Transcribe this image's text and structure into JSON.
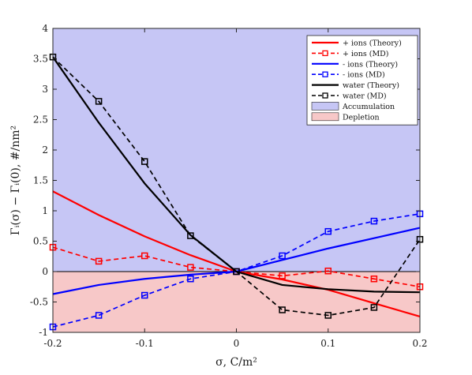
{
  "chart_data": {
    "type": "line",
    "xlabel": "σ, C/m²",
    "ylabel": "Γᵢ(σ) − Γᵢ(0), #/nm²",
    "xlim": [
      -0.2,
      0.2
    ],
    "ylim": [
      -1,
      4
    ],
    "x_ticks": [
      "-0.2",
      "-0.1",
      "0",
      "0.1",
      "0.2"
    ],
    "x_tick_values": [
      -0.2,
      -0.1,
      0,
      0.1,
      0.2
    ],
    "y_ticks": [
      "-1",
      "-0.5",
      "0",
      "0.5",
      "1",
      "1.5",
      "2",
      "2.5",
      "3",
      "3.5",
      "4"
    ],
    "y_tick_values": [
      -1,
      -0.5,
      0,
      0.5,
      1,
      1.5,
      2,
      2.5,
      3,
      3.5,
      4
    ],
    "grid": false,
    "legend_position": "top-right",
    "regions": [
      {
        "name": "Accumulation",
        "y_range": [
          0,
          4
        ],
        "color": "#c6c6f5"
      },
      {
        "name": "Depletion",
        "y_range": [
          -1,
          0
        ],
        "color": "#f7c8c8"
      }
    ],
    "series": [
      {
        "name": "+ ions (Theory)",
        "color": "#ff0000",
        "style": "solid",
        "marker": "none",
        "x": [
          -0.2,
          -0.15,
          -0.1,
          -0.05,
          0,
          0.05,
          0.1,
          0.15,
          0.2
        ],
        "y": [
          1.32,
          0.93,
          0.58,
          0.27,
          0,
          -0.13,
          -0.3,
          -0.52,
          -0.74
        ]
      },
      {
        "name": "+ ions (MD)",
        "color": "#ff0000",
        "style": "dashed",
        "marker": "square",
        "x": [
          -0.2,
          -0.15,
          -0.1,
          -0.05,
          0,
          0.05,
          0.1,
          0.15,
          0.2
        ],
        "y": [
          0.4,
          0.17,
          0.26,
          0.07,
          0,
          -0.07,
          0.01,
          -0.12,
          -0.25
        ]
      },
      {
        "name": "- ions (Theory)",
        "color": "#0000ff",
        "style": "solid",
        "marker": "none",
        "x": [
          -0.2,
          -0.15,
          -0.1,
          -0.05,
          0,
          0.05,
          0.1,
          0.15,
          0.2
        ],
        "y": [
          -0.37,
          -0.22,
          -0.12,
          -0.05,
          0,
          0.19,
          0.38,
          0.55,
          0.72
        ]
      },
      {
        "name": "- ions (MD)",
        "color": "#0000ff",
        "style": "dashed",
        "marker": "square",
        "x": [
          -0.2,
          -0.15,
          -0.1,
          -0.05,
          0,
          0.05,
          0.1,
          0.15,
          0.2
        ],
        "y": [
          -0.91,
          -0.72,
          -0.39,
          -0.12,
          0,
          0.26,
          0.66,
          0.83,
          0.95
        ]
      },
      {
        "name": "water (Theory)",
        "color": "#000000",
        "style": "solid",
        "marker": "none",
        "x": [
          -0.2,
          -0.15,
          -0.1,
          -0.05,
          0,
          0.05,
          0.1,
          0.15,
          0.2
        ],
        "y": [
          3.53,
          2.45,
          1.45,
          0.6,
          0,
          -0.22,
          -0.29,
          -0.33,
          -0.34
        ]
      },
      {
        "name": "water (MD)",
        "color": "#000000",
        "style": "dashed",
        "marker": "square",
        "x": [
          -0.2,
          -0.15,
          -0.1,
          -0.05,
          0,
          0.05,
          0.1,
          0.15,
          0.2
        ],
        "y": [
          3.53,
          2.8,
          1.81,
          0.59,
          0,
          -0.63,
          -0.72,
          -0.59,
          0.53
        ]
      }
    ],
    "legend": {
      "entries": [
        "+ ions (Theory)",
        "+ ions (MD)",
        "- ions (Theory)",
        "- ions (MD)",
        "water (Theory)",
        "water (MD)",
        "Accumulation",
        "Depletion"
      ]
    }
  }
}
